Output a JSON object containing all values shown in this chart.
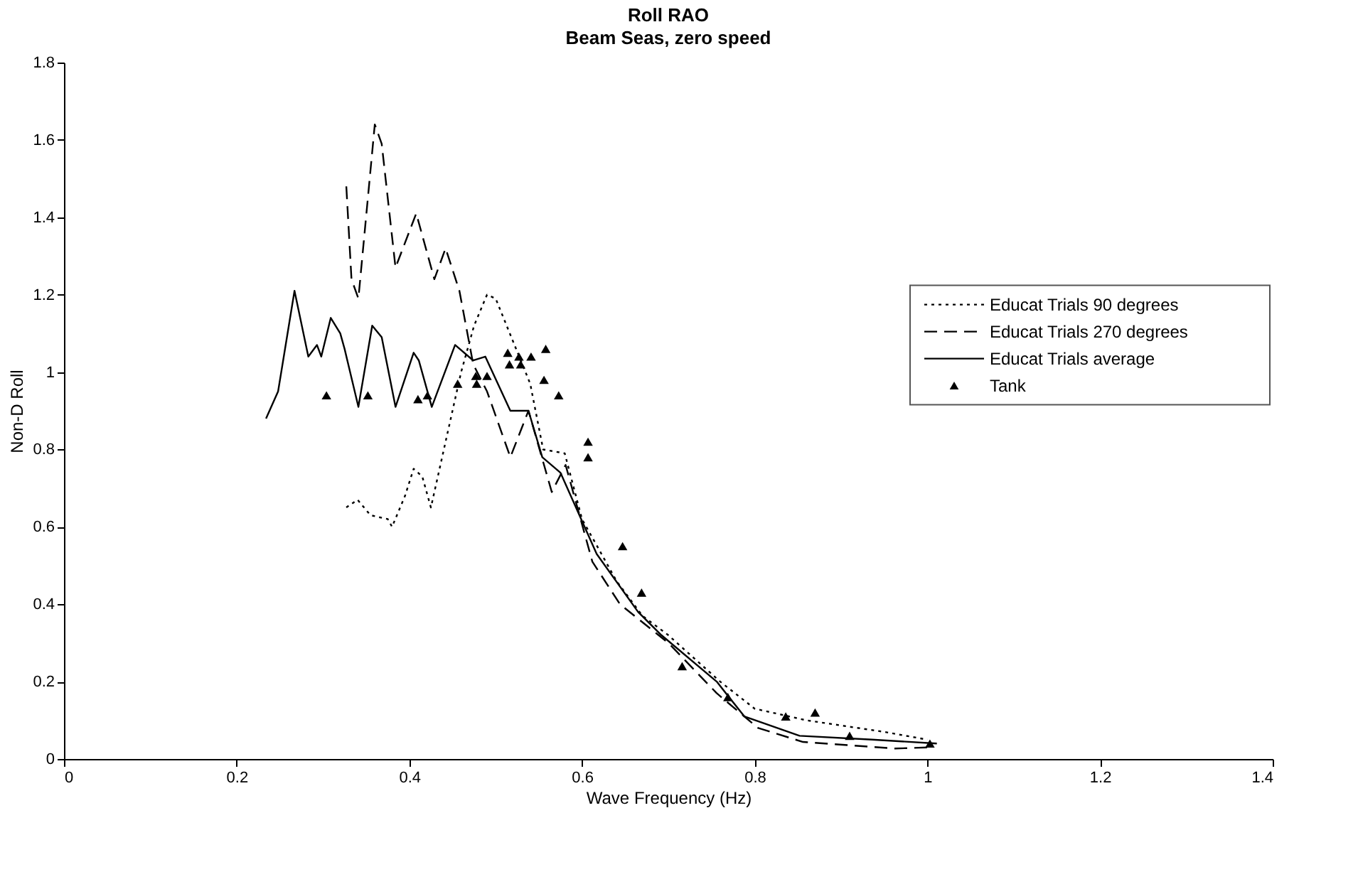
{
  "chart_data": {
    "type": "line",
    "title": "Roll RAO",
    "subtitle": "Beam Seas, zero speed",
    "xlabel": "Wave Frequency (Hz)",
    "ylabel": "Non-D Roll",
    "xlim": [
      0,
      1.4
    ],
    "xticks": [
      0,
      0.2,
      0.4,
      0.6,
      0.8,
      1,
      1.2,
      1.4
    ],
    "ylim": [
      0,
      1.8
    ],
    "yticks": [
      0,
      0.2,
      0.4,
      0.6,
      0.8,
      1,
      1.2,
      1.4,
      1.6,
      1.8
    ],
    "grid": false,
    "legend": "right",
    "series": [
      {
        "name": "Educat Trials 90 degrees",
        "color": "#000000",
        "line_style": "dotted",
        "x": [
          0.327,
          0.34,
          0.355,
          0.375,
          0.38,
          0.395,
          0.405,
          0.415,
          0.425,
          0.44,
          0.46,
          0.475,
          0.49,
          0.5,
          0.52,
          0.54,
          0.555,
          0.58,
          0.6,
          0.64,
          0.67,
          0.7,
          0.76,
          0.8,
          0.86,
          0.95,
          1.0
        ],
        "values": [
          0.65,
          0.67,
          0.63,
          0.62,
          0.6,
          0.68,
          0.75,
          0.73,
          0.65,
          0.8,
          1.0,
          1.12,
          1.2,
          1.19,
          1.08,
          0.97,
          0.8,
          0.79,
          0.62,
          0.46,
          0.37,
          0.32,
          0.2,
          0.13,
          0.1,
          0.07,
          0.05
        ]
      },
      {
        "name": "Educat Trials 270 degrees",
        "color": "#000000",
        "line_style": "dashed",
        "x": [
          0.327,
          0.333,
          0.341,
          0.36,
          0.368,
          0.384,
          0.408,
          0.429,
          0.442,
          0.458,
          0.474,
          0.49,
          0.517,
          0.538,
          0.565,
          0.581,
          0.612,
          0.644,
          0.7,
          0.756,
          0.804,
          0.856,
          0.963,
          1.0
        ],
        "values": [
          1.48,
          1.24,
          1.19,
          1.64,
          1.59,
          1.27,
          1.41,
          1.24,
          1.32,
          1.21,
          1.02,
          0.95,
          0.78,
          0.9,
          0.69,
          0.76,
          0.51,
          0.4,
          0.3,
          0.17,
          0.08,
          0.044,
          0.027,
          0.03
        ]
      },
      {
        "name": "Educat Trials average",
        "color": "#000000",
        "line_style": "solid",
        "x": [
          0.234,
          0.248,
          0.267,
          0.283,
          0.293,
          0.298,
          0.309,
          0.32,
          0.325,
          0.341,
          0.357,
          0.368,
          0.384,
          0.405,
          0.411,
          0.426,
          0.453,
          0.474,
          0.488,
          0.517,
          0.538,
          0.554,
          0.575,
          0.617,
          0.665,
          0.692,
          0.756,
          0.788,
          0.852,
          0.936,
          1.011
        ],
        "values": [
          0.88,
          0.95,
          1.21,
          1.04,
          1.07,
          1.04,
          1.14,
          1.1,
          1.06,
          0.91,
          1.12,
          1.09,
          0.91,
          1.05,
          1.03,
          0.91,
          1.07,
          1.03,
          1.04,
          0.9,
          0.9,
          0.78,
          0.74,
          0.53,
          0.38,
          0.32,
          0.2,
          0.11,
          0.06,
          0.05,
          0.04
        ]
      },
      {
        "name": "Tank",
        "color": "#000000",
        "type": "scatter",
        "marker": "triangle",
        "x": [
          0.304,
          0.352,
          0.41,
          0.421,
          0.456,
          0.477,
          0.478,
          0.49,
          0.514,
          0.516,
          0.527,
          0.529,
          0.541,
          0.556,
          0.558,
          0.573,
          0.607,
          0.607,
          0.647,
          0.669,
          0.716,
          0.769,
          0.836,
          0.87,
          0.91,
          1.003
        ],
        "values": [
          0.94,
          0.94,
          0.93,
          0.94,
          0.97,
          0.99,
          0.97,
          0.99,
          1.05,
          1.02,
          1.04,
          1.02,
          1.04,
          0.98,
          1.06,
          0.94,
          0.82,
          0.78,
          0.55,
          0.43,
          0.24,
          0.16,
          0.11,
          0.12,
          0.06,
          0.04
        ]
      }
    ]
  }
}
